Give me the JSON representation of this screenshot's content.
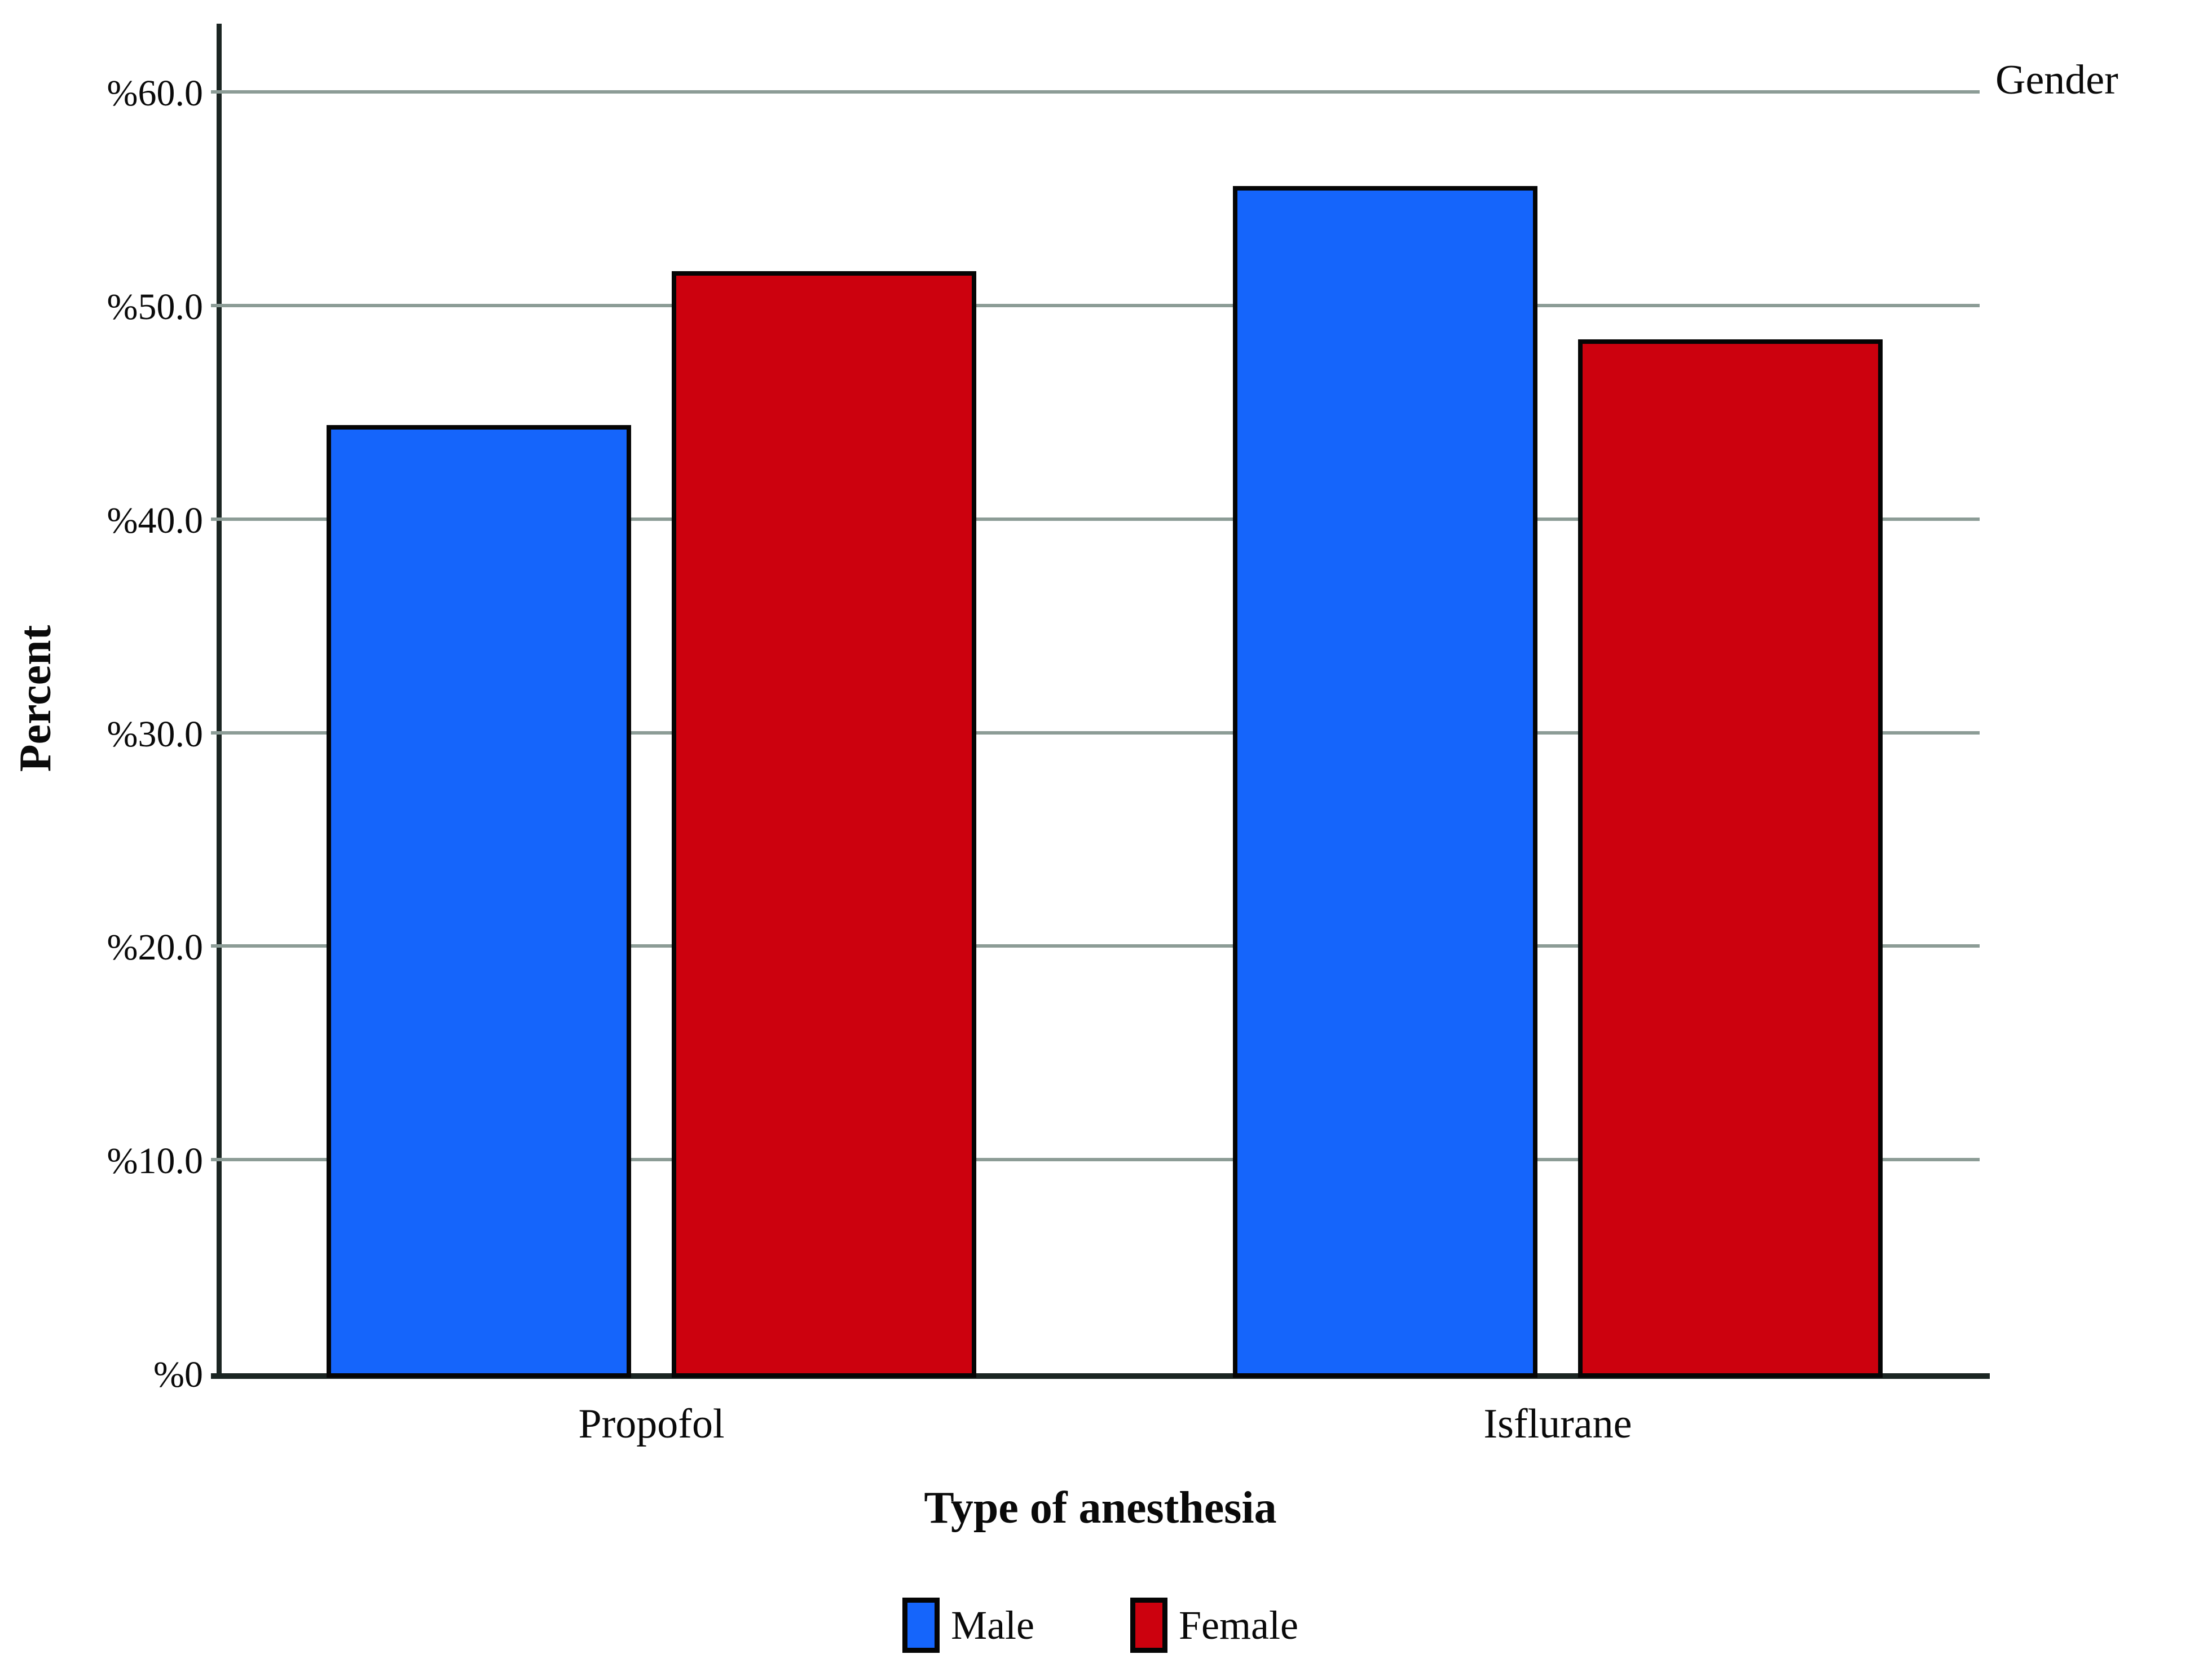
{
  "chart_data": {
    "type": "bar",
    "title": "",
    "categories": [
      "Propofol",
      "Isflurane"
    ],
    "series": [
      {
        "name": "Male",
        "color": "#1565fb",
        "values": [
          44.4,
          55.6
        ]
      },
      {
        "name": "Female",
        "color": "#cc010e",
        "values": [
          51.6,
          48.4
        ]
      }
    ],
    "xlabel": "Type of anesthesia",
    "ylabel": "Percent",
    "legend_title": "Gender",
    "legend_position": "bottom",
    "y_ticks": [
      {
        "value": 60,
        "label": "%60.0"
      },
      {
        "value": 50,
        "label": "%50.0"
      },
      {
        "value": 40,
        "label": "%40.0"
      },
      {
        "value": 30,
        "label": "%30.0"
      },
      {
        "value": 20,
        "label": "%20.0"
      },
      {
        "value": 10,
        "label": "%10.0"
      },
      {
        "value": 0,
        "label": "%0"
      }
    ],
    "ylim": [
      0,
      63.2
    ],
    "grid": true
  },
  "colors": {
    "background": "#ffffff",
    "gridline": "#8c9c96",
    "axis": "#1b2522",
    "bar_border": "#050505",
    "text": "#0a0a0a"
  }
}
